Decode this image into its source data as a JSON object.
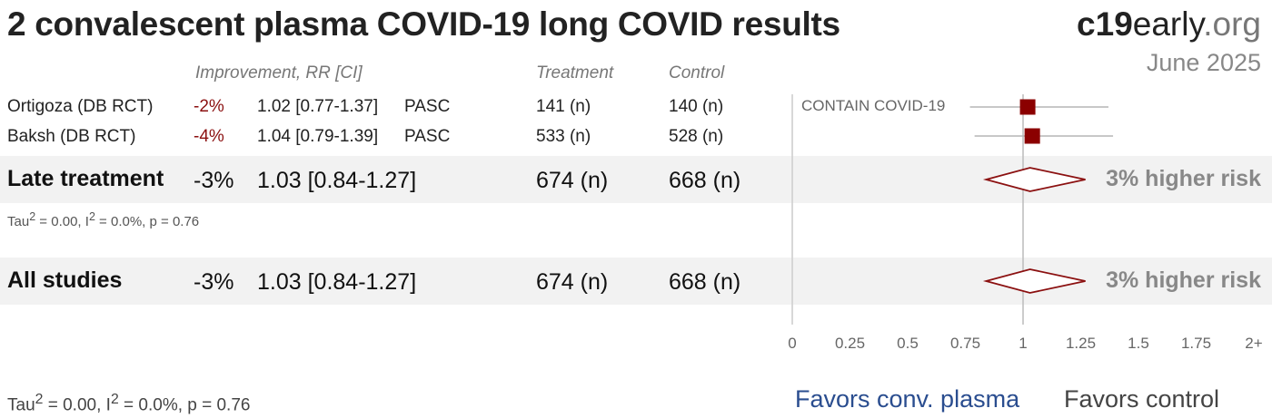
{
  "title": "2 convalescent plasma COVID-19 long COVID results",
  "brand": {
    "prefix": "c19",
    "middle": "early",
    "suffix": ".org"
  },
  "date": "June 2025",
  "headers": {
    "improvement": "Improvement, RR [CI]",
    "treatment": "Treatment",
    "control": "Control"
  },
  "studies": [
    {
      "name": "Ortigoza (DB RCT)",
      "improvement": "-2%",
      "rr_text": "1.02 [0.77-1.37]",
      "outcome": "PASC",
      "treatment": "141 (n)",
      "control": "140 (n)",
      "trial_label": "CONTAIN COVID-19"
    },
    {
      "name": "Baksh (DB RCT)",
      "improvement": "-4%",
      "rr_text": "1.04 [0.79-1.39]",
      "outcome": "PASC",
      "treatment": "533 (n)",
      "control": "528 (n)",
      "trial_label": ""
    }
  ],
  "late": {
    "name": "Late treatment",
    "improvement": "-3%",
    "rr_text": "1.03 [0.84-1.27]",
    "treatment": "674 (n)",
    "control": "668 (n)",
    "stat_prefix": "Tau",
    "stat_rest": " = 0.00, I",
    "stat_tail": " = 0.0%, p = 0.76",
    "sup": "2",
    "effect": "3% higher risk"
  },
  "all": {
    "name": "All studies",
    "improvement": "-3%",
    "rr_text": "1.03 [0.84-1.27]",
    "treatment": "674 (n)",
    "control": "668 (n)",
    "effect": "3% higher risk"
  },
  "footer_stat": {
    "prefix": "Tau",
    "rest": " = 0.00, I",
    "tail": " = 0.0%, p = 0.76",
    "sup": "2"
  },
  "favors": {
    "left": "Favors conv. plasma",
    "right": "Favors control"
  },
  "colors": {
    "marker": "#8b0000",
    "diamond": "#8b1010",
    "favor_left": "#2a4d8f"
  },
  "chart_data": {
    "type": "forest",
    "x_scale": "linear",
    "xlim": [
      0,
      2
    ],
    "ticks": [
      0,
      0.25,
      0.5,
      0.75,
      1,
      1.25,
      1.5,
      1.75,
      2
    ],
    "tick_labels": [
      "0",
      "0.25",
      "0.5",
      "0.75",
      "1",
      "1.25",
      "1.5",
      "1.75",
      "2+"
    ],
    "reference_line": 1,
    "studies": [
      {
        "name": "Ortigoza (DB RCT)",
        "rr": 1.02,
        "lo": 0.77,
        "hi": 1.37
      },
      {
        "name": "Baksh (DB RCT)",
        "rr": 1.04,
        "lo": 0.79,
        "hi": 1.39
      }
    ],
    "summaries": [
      {
        "name": "Late treatment",
        "rr": 1.03,
        "lo": 0.84,
        "hi": 1.27
      },
      {
        "name": "All studies",
        "rr": 1.03,
        "lo": 0.84,
        "hi": 1.27
      }
    ]
  }
}
